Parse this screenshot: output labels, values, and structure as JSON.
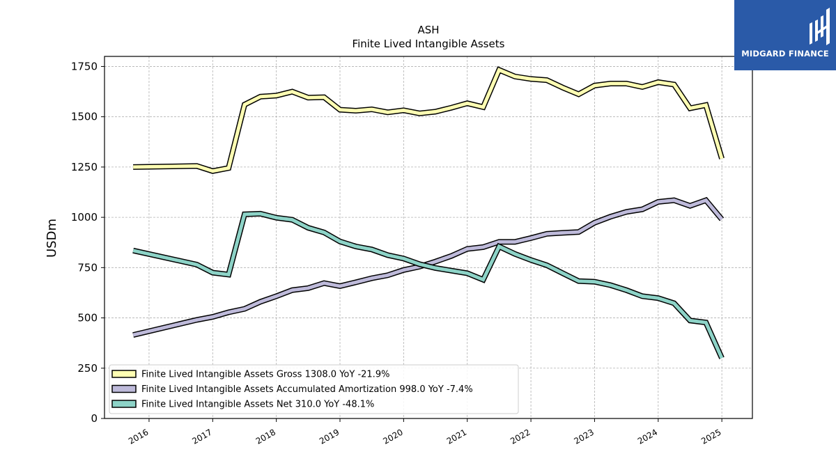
{
  "logo": {
    "name": "MIDGARD FINANCE",
    "icon": "midgard-m-logo-icon"
  },
  "chart_data": {
    "type": "line",
    "title": "ASH",
    "subtitle": "Finite Lived Intangible Assets",
    "ylabel": "USDm",
    "xlabel": "",
    "ylim": [
      0,
      1800
    ],
    "xlim": [
      2015.3,
      2025.48
    ],
    "yticks": [
      0,
      250,
      500,
      750,
      1000,
      1250,
      1500,
      1750
    ],
    "xticks": [
      2016,
      2017,
      2018,
      2019,
      2020,
      2021,
      2022,
      2023,
      2024,
      2025
    ],
    "xtick_labels": [
      "2016",
      "2017",
      "2018",
      "2019",
      "2020",
      "2021",
      "2022",
      "2023",
      "2024",
      "2025"
    ],
    "grid": true,
    "legend_position": "lower-left",
    "series": [
      {
        "name": "Finite Lived Intangible Assets Gross",
        "legend_label": "Finite Lived Intangible Assets Gross  1308.0 YoY -21.9%",
        "color": "#ffffb3",
        "points": [
          [
            2015.75,
            1250
          ],
          [
            2016.75,
            1255
          ],
          [
            2017.0,
            1230
          ],
          [
            2017.25,
            1245
          ],
          [
            2017.5,
            1560
          ],
          [
            2017.75,
            1600
          ],
          [
            2018.0,
            1605
          ],
          [
            2018.25,
            1625
          ],
          [
            2018.5,
            1595
          ],
          [
            2018.75,
            1597
          ],
          [
            2019.0,
            1535
          ],
          [
            2019.25,
            1530
          ],
          [
            2019.5,
            1537
          ],
          [
            2019.75,
            1522
          ],
          [
            2020.0,
            1532
          ],
          [
            2020.25,
            1517
          ],
          [
            2020.5,
            1525
          ],
          [
            2020.75,
            1545
          ],
          [
            2021.0,
            1567
          ],
          [
            2021.25,
            1548
          ],
          [
            2021.5,
            1733
          ],
          [
            2021.75,
            1700
          ],
          [
            2022.0,
            1688
          ],
          [
            2022.25,
            1682
          ],
          [
            2022.5,
            1645
          ],
          [
            2022.75,
            1612
          ],
          [
            2023.0,
            1655
          ],
          [
            2023.25,
            1665
          ],
          [
            2023.5,
            1665
          ],
          [
            2023.75,
            1648
          ],
          [
            2024.0,
            1672
          ],
          [
            2024.25,
            1660
          ],
          [
            2024.5,
            1542
          ],
          [
            2024.75,
            1558
          ],
          [
            2025.0,
            1292
          ]
        ]
      },
      {
        "name": "Finite Lived Intangible Assets Accumulated Amortization",
        "legend_label": "Finite Lived Intangible Assets Accumulated Amortization  998.0 YoY -7.4%",
        "color": "#bebada",
        "points": [
          [
            2015.75,
            415
          ],
          [
            2016.75,
            490
          ],
          [
            2017.0,
            505
          ],
          [
            2017.25,
            528
          ],
          [
            2017.5,
            545
          ],
          [
            2017.75,
            580
          ],
          [
            2018.0,
            608
          ],
          [
            2018.25,
            638
          ],
          [
            2018.5,
            648
          ],
          [
            2018.75,
            673
          ],
          [
            2019.0,
            658
          ],
          [
            2019.25,
            677
          ],
          [
            2019.5,
            697
          ],
          [
            2019.75,
            712
          ],
          [
            2020.0,
            738
          ],
          [
            2020.25,
            755
          ],
          [
            2020.5,
            780
          ],
          [
            2020.75,
            808
          ],
          [
            2021.0,
            843
          ],
          [
            2021.25,
            852
          ],
          [
            2021.5,
            878
          ],
          [
            2021.75,
            878
          ],
          [
            2022.0,
            897
          ],
          [
            2022.25,
            918
          ],
          [
            2022.5,
            923
          ],
          [
            2022.75,
            927
          ],
          [
            2023.0,
            973
          ],
          [
            2023.25,
            1003
          ],
          [
            2023.5,
            1027
          ],
          [
            2023.75,
            1040
          ],
          [
            2024.0,
            1077
          ],
          [
            2024.25,
            1085
          ],
          [
            2024.5,
            1057
          ],
          [
            2024.75,
            1085
          ],
          [
            2025.0,
            990
          ]
        ]
      },
      {
        "name": "Finite Lived Intangible Assets Net",
        "legend_label": "Finite Lived Intangible Assets Net  310.0 YoY -48.1%",
        "color": "#8dd3c7",
        "points": [
          [
            2015.75,
            835
          ],
          [
            2016.75,
            765
          ],
          [
            2017.0,
            725
          ],
          [
            2017.25,
            715
          ],
          [
            2017.5,
            1015
          ],
          [
            2017.75,
            1018
          ],
          [
            2018.0,
            998
          ],
          [
            2018.25,
            988
          ],
          [
            2018.5,
            948
          ],
          [
            2018.75,
            925
          ],
          [
            2019.0,
            880
          ],
          [
            2019.25,
            855
          ],
          [
            2019.5,
            840
          ],
          [
            2019.75,
            812
          ],
          [
            2020.0,
            795
          ],
          [
            2020.25,
            767
          ],
          [
            2020.5,
            748
          ],
          [
            2020.75,
            735
          ],
          [
            2021.0,
            722
          ],
          [
            2021.25,
            690
          ],
          [
            2021.5,
            855
          ],
          [
            2021.75,
            818
          ],
          [
            2022.0,
            788
          ],
          [
            2022.25,
            762
          ],
          [
            2022.5,
            722
          ],
          [
            2022.75,
            683
          ],
          [
            2023.0,
            680
          ],
          [
            2023.25,
            663
          ],
          [
            2023.5,
            638
          ],
          [
            2023.75,
            608
          ],
          [
            2024.0,
            598
          ],
          [
            2024.25,
            573
          ],
          [
            2024.5,
            487
          ],
          [
            2024.75,
            477
          ],
          [
            2025.0,
            300
          ]
        ]
      }
    ]
  }
}
